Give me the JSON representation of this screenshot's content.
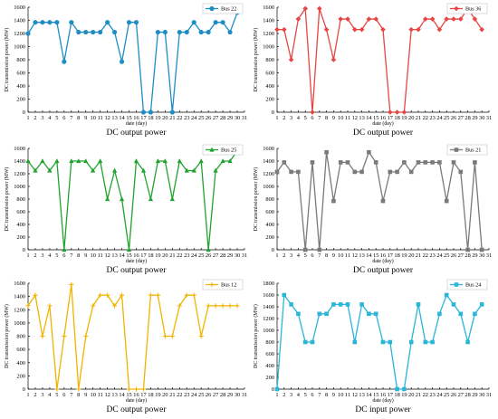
{
  "chart_data": [
    {
      "type": "line",
      "title": "DC output power",
      "xlabel": "date (day)",
      "ylabel": "DC transmission power (MW)",
      "xlim": [
        1,
        31
      ],
      "ylim": [
        0,
        1600
      ],
      "x_ticks": [
        1,
        2,
        3,
        4,
        5,
        6,
        7,
        8,
        9,
        10,
        11,
        12,
        13,
        14,
        15,
        16,
        17,
        18,
        19,
        20,
        21,
        22,
        23,
        24,
        25,
        26,
        27,
        28,
        29,
        30,
        31
      ],
      "y_ticks": [
        0,
        200,
        400,
        600,
        800,
        1000,
        1200,
        1400,
        1600
      ],
      "grid": false,
      "legend_position": "top-right",
      "series": [
        {
          "name": "Bus 22",
          "color": "#1f8dc4",
          "marker": "circle",
          "x": [
            1,
            2,
            3,
            4,
            5,
            6,
            7,
            8,
            9,
            10,
            11,
            12,
            13,
            14,
            15,
            16,
            17,
            18,
            19,
            20,
            21,
            22,
            23,
            24,
            25,
            26,
            27,
            28,
            29,
            30
          ],
          "values": [
            1200,
            1370,
            1370,
            1370,
            1370,
            770,
            1370,
            1220,
            1220,
            1220,
            1220,
            1370,
            1220,
            770,
            1370,
            1370,
            0,
            0,
            1220,
            1220,
            0,
            1220,
            1220,
            1370,
            1220,
            1220,
            1370,
            1370,
            1220,
            1520
          ]
        }
      ]
    },
    {
      "type": "line",
      "title": "DC output power",
      "xlabel": "date (day)",
      "ylabel": "DC transmission power (MW)",
      "xlim": [
        1,
        31
      ],
      "ylim": [
        0,
        1600
      ],
      "x_ticks": [
        1,
        2,
        3,
        4,
        5,
        6,
        7,
        8,
        9,
        10,
        11,
        12,
        13,
        14,
        15,
        16,
        17,
        18,
        19,
        20,
        21,
        22,
        23,
        24,
        25,
        26,
        27,
        28,
        29,
        30,
        31
      ],
      "y_ticks": [
        0,
        200,
        400,
        600,
        800,
        1000,
        1200,
        1400,
        1600
      ],
      "grid": false,
      "legend_position": "top-right",
      "series": [
        {
          "name": "Bus 36",
          "color": "#e84545",
          "marker": "diamond",
          "x": [
            1,
            2,
            3,
            4,
            5,
            6,
            7,
            8,
            9,
            10,
            11,
            12,
            13,
            14,
            15,
            16,
            17,
            18,
            19,
            20,
            21,
            22,
            23,
            24,
            25,
            26,
            27,
            28,
            29,
            30
          ],
          "values": [
            1260,
            1260,
            800,
            1420,
            1580,
            0,
            1580,
            1260,
            800,
            1420,
            1420,
            1260,
            1260,
            1420,
            1420,
            1260,
            0,
            0,
            0,
            1260,
            1260,
            1420,
            1420,
            1260,
            1420,
            1420,
            1420,
            1580,
            1420,
            1260
          ]
        }
      ]
    },
    {
      "type": "line",
      "title": "DC output power",
      "xlabel": "date (day)",
      "ylabel": "DC transmission power (MW)",
      "xlim": [
        1,
        31
      ],
      "ylim": [
        0,
        1600
      ],
      "x_ticks": [
        1,
        2,
        3,
        4,
        5,
        6,
        7,
        8,
        9,
        10,
        11,
        12,
        13,
        14,
        15,
        16,
        17,
        18,
        19,
        20,
        21,
        22,
        23,
        24,
        25,
        26,
        27,
        28,
        29,
        30,
        31
      ],
      "y_ticks": [
        0,
        200,
        400,
        600,
        800,
        1000,
        1200,
        1400,
        1600
      ],
      "grid": false,
      "legend_position": "top-right",
      "series": [
        {
          "name": "Bus 25",
          "color": "#1fa32e",
          "marker": "triangle",
          "x": [
            1,
            2,
            3,
            4,
            5,
            6,
            7,
            8,
            9,
            10,
            11,
            12,
            13,
            14,
            15,
            16,
            17,
            18,
            19,
            20,
            21,
            22,
            23,
            24,
            25,
            26,
            27,
            28,
            29,
            30
          ],
          "values": [
            1400,
            1250,
            1400,
            1250,
            1400,
            0,
            1400,
            1400,
            1400,
            1250,
            1400,
            800,
            1250,
            800,
            0,
            1400,
            1250,
            800,
            1400,
            1400,
            800,
            1400,
            1250,
            1250,
            1400,
            0,
            1250,
            1400,
            1400,
            1560
          ]
        }
      ]
    },
    {
      "type": "line",
      "title": "DC output power",
      "xlabel": "date (day)",
      "ylabel": "DC transmission power (MW)",
      "xlim": [
        1,
        31
      ],
      "ylim": [
        0,
        1600
      ],
      "x_ticks": [
        1,
        2,
        3,
        4,
        5,
        6,
        7,
        8,
        9,
        10,
        11,
        12,
        13,
        14,
        15,
        16,
        17,
        18,
        19,
        20,
        21,
        22,
        23,
        24,
        25,
        26,
        27,
        28,
        29,
        30,
        31
      ],
      "y_ticks": [
        0,
        200,
        400,
        600,
        800,
        1000,
        1200,
        1400,
        1600
      ],
      "grid": false,
      "legend_position": "top-right",
      "series": [
        {
          "name": "Bus 21",
          "color": "#7a7a7a",
          "marker": "square",
          "x": [
            1,
            2,
            3,
            4,
            5,
            6,
            7,
            8,
            9,
            10,
            11,
            12,
            13,
            14,
            15,
            16,
            17,
            18,
            19,
            20,
            21,
            22,
            23,
            24,
            25,
            26,
            27,
            28,
            29,
            30
          ],
          "values": [
            1230,
            1380,
            1230,
            1230,
            0,
            1380,
            0,
            1540,
            770,
            1380,
            1380,
            1230,
            1230,
            1540,
            1380,
            770,
            1230,
            1230,
            1380,
            1230,
            1380,
            1380,
            1380,
            1380,
            770,
            1380,
            1230,
            0,
            1380,
            0
          ]
        }
      ]
    },
    {
      "type": "line",
      "title": "DC output power",
      "xlabel": "date (day)",
      "ylabel": "DC transmission power (MW)",
      "xlim": [
        1,
        31
      ],
      "ylim": [
        0,
        1600
      ],
      "x_ticks": [
        1,
        2,
        3,
        4,
        5,
        6,
        7,
        8,
        9,
        10,
        11,
        12,
        13,
        14,
        15,
        16,
        17,
        18,
        19,
        20,
        21,
        22,
        23,
        24,
        25,
        26,
        27,
        28,
        29,
        30,
        31
      ],
      "y_ticks": [
        0,
        200,
        400,
        600,
        800,
        1000,
        1200,
        1400,
        1600
      ],
      "grid": false,
      "legend_position": "top-right",
      "series": [
        {
          "name": "Bus 12",
          "color": "#f0b400",
          "marker": "plus",
          "x": [
            1,
            2,
            3,
            4,
            5,
            6,
            7,
            8,
            9,
            10,
            11,
            12,
            13,
            14,
            15,
            16,
            17,
            18,
            19,
            20,
            21,
            22,
            23,
            24,
            25,
            26,
            27,
            28,
            29,
            30
          ],
          "values": [
            1260,
            1420,
            800,
            1260,
            0,
            800,
            1580,
            0,
            800,
            1260,
            1420,
            1420,
            1260,
            1420,
            0,
            0,
            0,
            1420,
            1420,
            800,
            800,
            1260,
            1420,
            1420,
            800,
            1260,
            1260,
            1260,
            1260,
            1260
          ]
        }
      ]
    },
    {
      "type": "line",
      "title": "DC input power",
      "xlabel": "date (day)",
      "ylabel": "DC transmission power (MW)",
      "xlim": [
        1,
        31
      ],
      "ylim": [
        0,
        1800
      ],
      "x_ticks": [
        1,
        2,
        3,
        4,
        5,
        6,
        7,
        8,
        9,
        10,
        11,
        12,
        13,
        14,
        15,
        16,
        17,
        18,
        19,
        20,
        21,
        22,
        23,
        24,
        25,
        26,
        27,
        28,
        29,
        30,
        31
      ],
      "y_ticks": [
        0,
        200,
        400,
        600,
        800,
        1000,
        1200,
        1400,
        1600,
        1800
      ],
      "grid": false,
      "legend_position": "top-right",
      "series": [
        {
          "name": "Bus 24",
          "color": "#29b6d8",
          "marker": "square",
          "x": [
            1,
            2,
            3,
            4,
            5,
            6,
            7,
            8,
            9,
            10,
            11,
            12,
            13,
            14,
            15,
            16,
            17,
            18,
            19,
            20,
            21,
            22,
            23,
            24,
            25,
            26,
            27,
            28,
            29,
            30
          ],
          "values": [
            0,
            1600,
            1440,
            1280,
            800,
            800,
            1280,
            1280,
            1440,
            1440,
            1440,
            800,
            1440,
            1280,
            1280,
            800,
            800,
            0,
            0,
            800,
            1440,
            800,
            800,
            1280,
            1600,
            1440,
            1280,
            800,
            1280,
            1440
          ]
        }
      ]
    }
  ]
}
